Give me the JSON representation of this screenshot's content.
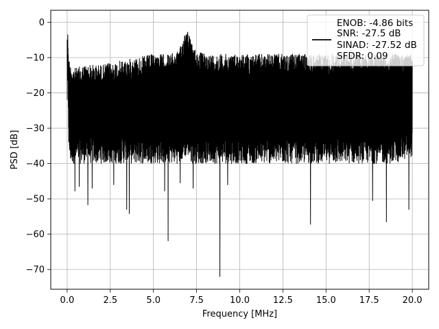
{
  "chart_data": {
    "type": "line",
    "title": "",
    "xlabel": "Frequency [MHz]",
    "ylabel": "PSD [dB]",
    "xlim": [
      -0.95,
      20.95
    ],
    "ylim": [
      -75.6,
      3.4
    ],
    "xticks": [
      0.0,
      2.5,
      5.0,
      7.5,
      10.0,
      12.5,
      15.0,
      17.5,
      20.0
    ],
    "xtick_labels": [
      "0.0",
      "2.5",
      "5.0",
      "7.5",
      "10.0",
      "12.5",
      "15.0",
      "17.5",
      "20.0"
    ],
    "yticks": [
      0,
      -10,
      -20,
      -30,
      -40,
      -50,
      -60,
      -70
    ],
    "ytick_labels": [
      "0",
      "−10",
      "−20",
      "−30",
      "−40",
      "−50",
      "−60",
      "−70"
    ],
    "grid": true,
    "legend": {
      "placement": "top-right",
      "entries": [
        "ENOB: -4.86 bits",
        "SNR: -27.5 dB",
        "SINAD: -27.52 dB",
        "SFDR: 0.09"
      ]
    },
    "series": [
      {
        "color": "#000000",
        "envelope": {
          "x": [
            0.0,
            0.05,
            0.1,
            0.2,
            0.5,
            1.0,
            2.0,
            3.0,
            4.0,
            5.0,
            6.0,
            6.5,
            6.9,
            7.0,
            7.2,
            7.5,
            8.0,
            9.0,
            10.0,
            11.0,
            12.0,
            13.0,
            14.0,
            15.0,
            16.0,
            17.0,
            18.0,
            19.0,
            20.0
          ],
          "upper": [
            -1,
            -3,
            -10,
            -12,
            -13,
            -12,
            -12,
            -11,
            -10,
            -9,
            -9,
            -8,
            -1,
            -2,
            -6,
            -8,
            -9,
            -9,
            -9,
            -9,
            -9,
            -9,
            -9,
            -9,
            -9,
            -9,
            -9,
            -9,
            -9
          ],
          "lower": [
            -25,
            -20,
            -38,
            -40,
            -40,
            -40,
            -40,
            -40,
            -40,
            -40,
            -40,
            -40,
            -38,
            -38,
            -40,
            -40,
            -40,
            -40,
            -40,
            -40,
            -40,
            -40,
            -40,
            -40,
            -40,
            -40,
            -40,
            -40,
            -38
          ]
        },
        "spikes": [
          {
            "x": 0.45,
            "y": -47.8
          },
          {
            "x": 0.7,
            "y": -46.5
          },
          {
            "x": 1.2,
            "y": -51.7
          },
          {
            "x": 1.45,
            "y": -47.0
          },
          {
            "x": 2.7,
            "y": -46.0
          },
          {
            "x": 3.45,
            "y": -53.0
          },
          {
            "x": 3.6,
            "y": -54.2
          },
          {
            "x": 5.65,
            "y": -47.8
          },
          {
            "x": 5.85,
            "y": -61.9
          },
          {
            "x": 6.55,
            "y": -45.5
          },
          {
            "x": 7.3,
            "y": -47.0
          },
          {
            "x": 8.85,
            "y": -72.0
          },
          {
            "x": 9.3,
            "y": -46.0
          },
          {
            "x": 14.1,
            "y": -57.2
          },
          {
            "x": 17.7,
            "y": -50.5
          },
          {
            "x": 18.5,
            "y": -56.5
          },
          {
            "x": 19.8,
            "y": -53.0
          }
        ]
      }
    ]
  }
}
